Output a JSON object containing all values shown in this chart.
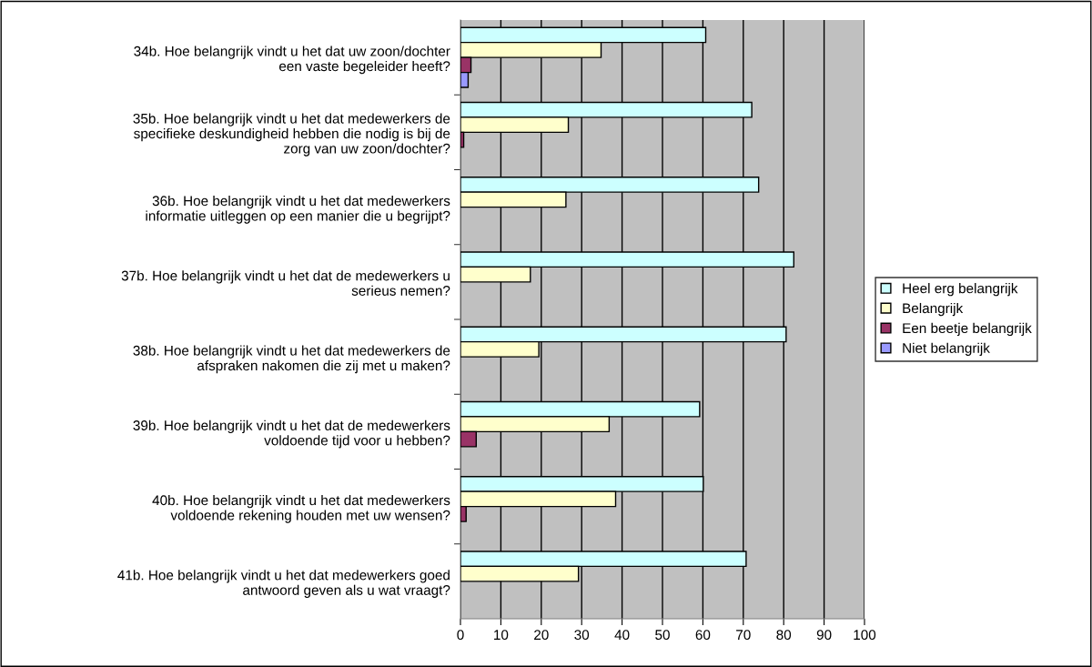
{
  "chart_data": {
    "type": "bar",
    "orientation": "horizontal",
    "categories": [
      "34b. Hoe belangrijk vindt u het dat uw zoon/dochter\neen vaste begeleider heeft?",
      "35b. Hoe belangrijk vindt u het dat medewerkers de\nspecifieke deskundigheid hebben die nodig is bij de\nzorg van uw zoon/dochter?",
      "36b. Hoe belangrijk vindt u het dat medewerkers\ninformatie uitleggen op een manier die u begrijpt?",
      "37b. Hoe belangrijk vindt u het dat de medewerkers u\nserieus nemen?",
      "38b. Hoe belangrijk vindt u het dat medewerkers de\nafspraken nakomen die zij met u maken?",
      "39b. Hoe belangrijk vindt u het dat de medewerkers\nvoldoende tijd voor u hebben?",
      "40b. Hoe belangrijk vindt u het dat medewerkers\nvoldoende rekening houden met uw wensen?",
      "41b. Hoe belangrijk vindt u het dat medewerkers goed\nantwoord geven als u wat vraagt?"
    ],
    "series": [
      {
        "name": "Heel erg belangrijk",
        "color": "#ccffff",
        "values": [
          60.7,
          72.1,
          73.8,
          82.5,
          80.6,
          59.2,
          60.1,
          70.7
        ]
      },
      {
        "name": "Belangrijk",
        "color": "#ffffcc",
        "values": [
          34.8,
          26.7,
          26.1,
          17.3,
          19.4,
          36.8,
          38.4,
          29.2
        ]
      },
      {
        "name": "Een beetje belangrijk",
        "color": "#993366",
        "values": [
          2.6,
          0.8,
          null,
          null,
          null,
          3.9,
          1.4,
          null
        ]
      },
      {
        "name": "Niet belangrijk",
        "color": "#9999ff",
        "values": [
          1.9,
          null,
          null,
          null,
          null,
          null,
          null,
          null
        ]
      }
    ],
    "xlim": [
      0,
      100
    ],
    "xticks": [
      0,
      10,
      20,
      30,
      40,
      50,
      60,
      70,
      80,
      90,
      100
    ],
    "grid": "x",
    "legend": "right"
  }
}
